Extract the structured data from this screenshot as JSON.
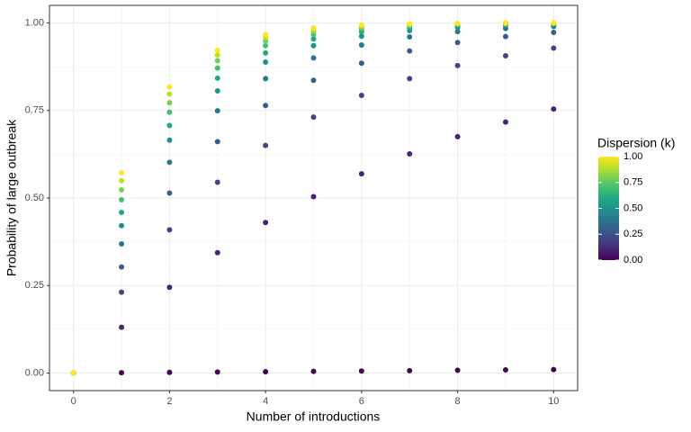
{
  "chart_data": {
    "type": "scatter",
    "x_label": "Number of introductions",
    "y_label": "Probability of large outbreak",
    "x": [
      0,
      1,
      2,
      3,
      4,
      5,
      6,
      7,
      8,
      9,
      10
    ],
    "xlim": [
      -0.5,
      10.5
    ],
    "xticks": [
      0,
      2,
      4,
      6,
      8,
      10
    ],
    "ylim": [
      -0.05,
      1.05
    ],
    "yticks": [
      {
        "value": 0,
        "label": "0.00"
      },
      {
        "value": 0.25,
        "label": "0.25"
      },
      {
        "value": 0.5,
        "label": "0.50"
      },
      {
        "value": 0.75,
        "label": "0.75"
      },
      {
        "value": 1,
        "label": "1.00"
      }
    ],
    "grid": true,
    "series": [
      {
        "k": 0.01,
        "values": [
          0,
          0.001,
          0.002,
          0.003,
          0.004,
          0.005,
          0.006,
          0.007,
          0.008,
          0.009,
          0.01
        ]
      },
      {
        "k": 0.1,
        "values": [
          0,
          0.131,
          0.245,
          0.344,
          0.43,
          0.504,
          0.569,
          0.626,
          0.675,
          0.717,
          0.754
        ]
      },
      {
        "k": 0.2,
        "values": [
          0,
          0.231,
          0.409,
          0.545,
          0.65,
          0.731,
          0.793,
          0.841,
          0.878,
          0.906,
          0.928
        ]
      },
      {
        "k": 0.3,
        "values": [
          0,
          0.303,
          0.514,
          0.661,
          0.764,
          0.836,
          0.885,
          0.92,
          0.944,
          0.961,
          0.973
        ]
      },
      {
        "k": 0.4,
        "values": [
          0,
          0.369,
          0.602,
          0.749,
          0.841,
          0.9,
          0.937,
          0.96,
          0.975,
          0.984,
          0.99
        ]
      },
      {
        "k": 0.5,
        "values": [
          0,
          0.421,
          0.665,
          0.806,
          0.888,
          0.935,
          0.962,
          0.978,
          0.987,
          0.993,
          0.996
        ]
      },
      {
        "k": 0.6,
        "values": [
          0,
          0.459,
          0.707,
          0.842,
          0.914,
          0.954,
          0.975,
          0.986,
          0.993,
          0.996,
          0.998
        ]
      },
      {
        "k": 0.7,
        "values": [
          0,
          0.495,
          0.745,
          0.871,
          0.935,
          0.967,
          0.983,
          0.992,
          0.996,
          0.998,
          0.999
        ]
      },
      {
        "k": 0.8,
        "values": [
          0,
          0.523,
          0.772,
          0.892,
          0.948,
          0.975,
          0.988,
          0.994,
          0.997,
          0.999,
          0.999
        ]
      },
      {
        "k": 0.9,
        "values": [
          0,
          0.549,
          0.797,
          0.908,
          0.959,
          0.981,
          0.992,
          0.996,
          0.998,
          0.999,
          1.0
        ]
      },
      {
        "k": 1.0,
        "values": [
          0,
          0.572,
          0.817,
          0.922,
          0.966,
          0.986,
          0.994,
          0.997,
          0.999,
          1.0,
          1.0
        ]
      }
    ],
    "colorbar": {
      "title": "Dispersion (k)",
      "lim": [
        0,
        1
      ],
      "ticks": [
        {
          "value": 0,
          "label": "0.00"
        },
        {
          "value": 0.25,
          "label": "0.25"
        },
        {
          "value": 0.5,
          "label": "0.50"
        },
        {
          "value": 0.75,
          "label": "0.75"
        },
        {
          "value": 1,
          "label": "1.00"
        }
      ],
      "colors": [
        "#440154",
        "#482475",
        "#414487",
        "#355f8d",
        "#2a788e",
        "#21918c",
        "#22a884",
        "#44bf70",
        "#7ad151",
        "#bddf26",
        "#fde725"
      ]
    }
  }
}
